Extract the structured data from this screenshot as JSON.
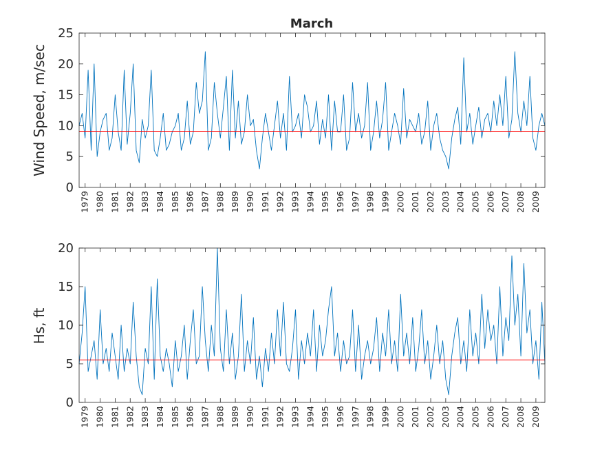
{
  "chart_data": [
    {
      "type": "line",
      "title": "March",
      "xlabel": "",
      "ylabel": "Wind Speed, m/sec",
      "ylim": [
        0,
        25
      ],
      "yticks": [
        0,
        5,
        10,
        15,
        20,
        25
      ],
      "xlim": [
        1978.6,
        2009.6
      ],
      "xtick_labels": [
        "1979",
        "1980",
        "1981",
        "1982",
        "1983",
        "1984",
        "1985",
        "1986",
        "1987",
        "1988",
        "1989",
        "1990",
        "1991",
        "1992",
        "1993",
        "1994",
        "1995",
        "1996",
        "1997",
        "1998",
        "1999",
        "2000",
        "2001",
        "2002",
        "2003",
        "2004",
        "2005",
        "2006",
        "2007",
        "2008",
        "2009"
      ],
      "mean_line": 9.1,
      "grid": false,
      "series": [
        {
          "color": "#0072bd",
          "x": [
            1978.6,
            1978.8,
            1979.0,
            1979.2,
            1979.4,
            1979.6,
            1979.8,
            1980.0,
            1980.2,
            1980.4,
            1980.6,
            1980.8,
            1981.0,
            1981.2,
            1981.4,
            1981.6,
            1981.8,
            1982.0,
            1982.2,
            1982.4,
            1982.6,
            1982.8,
            1983.0,
            1983.2,
            1983.4,
            1983.6,
            1983.8,
            1984.0,
            1984.2,
            1984.4,
            1984.6,
            1984.8,
            1985.0,
            1985.2,
            1985.4,
            1985.6,
            1985.8,
            1986.0,
            1986.2,
            1986.4,
            1986.6,
            1986.8,
            1987.0,
            1987.2,
            1987.4,
            1987.6,
            1987.8,
            1988.0,
            1988.2,
            1988.4,
            1988.6,
            1988.8,
            1989.0,
            1989.2,
            1989.4,
            1989.6,
            1989.8,
            1990.0,
            1990.2,
            1990.4,
            1990.6,
            1990.8,
            1991.0,
            1991.2,
            1991.4,
            1991.6,
            1991.8,
            1992.0,
            1992.2,
            1992.4,
            1992.6,
            1992.8,
            1993.0,
            1993.2,
            1993.4,
            1993.6,
            1993.8,
            1994.0,
            1994.2,
            1994.4,
            1994.6,
            1994.8,
            1995.0,
            1995.2,
            1995.4,
            1995.6,
            1995.8,
            1996.0,
            1996.2,
            1996.4,
            1996.6,
            1996.8,
            1997.0,
            1997.2,
            1997.4,
            1997.6,
            1997.8,
            1998.0,
            1998.2,
            1998.4,
            1998.6,
            1998.8,
            1999.0,
            1999.2,
            1999.4,
            1999.6,
            1999.8,
            2000.0,
            2000.2,
            2000.4,
            2000.6,
            2000.8,
            2001.0,
            2001.2,
            2001.4,
            2001.6,
            2001.8,
            2002.0,
            2002.2,
            2002.4,
            2002.6,
            2002.8,
            2003.0,
            2003.2,
            2003.4,
            2003.6,
            2003.8,
            2004.0,
            2004.2,
            2004.4,
            2004.6,
            2004.8,
            2005.0,
            2005.2,
            2005.4,
            2005.6,
            2005.8,
            2006.0,
            2006.2,
            2006.4,
            2006.6,
            2006.8,
            2007.0,
            2007.2,
            2007.4,
            2007.6,
            2007.8,
            2008.0,
            2008.2,
            2008.4,
            2008.6,
            2008.8,
            2009.0,
            2009.2,
            2009.4,
            2009.6
          ],
          "y": [
            10,
            12,
            8,
            19,
            6,
            20,
            5,
            9,
            11,
            12,
            6,
            8,
            15,
            9,
            6,
            19,
            7,
            12,
            20,
            6,
            4,
            11,
            8,
            10,
            19,
            6,
            5,
            8,
            12,
            6,
            7,
            9,
            10,
            12,
            6,
            8,
            14,
            7,
            9,
            17,
            12,
            14,
            22,
            6,
            8,
            17,
            12,
            8,
            13,
            18,
            6,
            19,
            8,
            14,
            7,
            9,
            15,
            10,
            11,
            6,
            3,
            8,
            12,
            9,
            6,
            10,
            14,
            8,
            12,
            6,
            18,
            9,
            10,
            12,
            8,
            15,
            13,
            9,
            10,
            14,
            7,
            11,
            8,
            15,
            6,
            14,
            9,
            9,
            15,
            6,
            8,
            17,
            9,
            12,
            8,
            10,
            17,
            6,
            9,
            14,
            8,
            11,
            17,
            6,
            9,
            12,
            10,
            7,
            16,
            8,
            11,
            10,
            9,
            12,
            7,
            9,
            14,
            6,
            10,
            12,
            8,
            6,
            5,
            3,
            8,
            11,
            13,
            7,
            21,
            9,
            12,
            7,
            10,
            13,
            8,
            11,
            12,
            9,
            14,
            10,
            15,
            10,
            18,
            8,
            11,
            22,
            12,
            9,
            14,
            10,
            18,
            8,
            6,
            10,
            12,
            10
          ]
        }
      ]
    },
    {
      "type": "line",
      "title": "",
      "xlabel": "",
      "ylabel": "Hs, ft",
      "ylim": [
        0,
        20
      ],
      "yticks": [
        0,
        5,
        10,
        15,
        20
      ],
      "xlim": [
        1978.6,
        2009.6
      ],
      "xtick_labels": [
        "1979",
        "1980",
        "1981",
        "1982",
        "1983",
        "1984",
        "1985",
        "1986",
        "1987",
        "1988",
        "1989",
        "1990",
        "1991",
        "1992",
        "1993",
        "1994",
        "1995",
        "1996",
        "1997",
        "1998",
        "1999",
        "2000",
        "2001",
        "2002",
        "2003",
        "2004",
        "2005",
        "2006",
        "2007",
        "2008",
        "2009"
      ],
      "mean_line": 5.5,
      "grid": false,
      "series": [
        {
          "color": "#0072bd",
          "x": [
            1978.6,
            1978.8,
            1979.0,
            1979.2,
            1979.4,
            1979.6,
            1979.8,
            1980.0,
            1980.2,
            1980.4,
            1980.6,
            1980.8,
            1981.0,
            1981.2,
            1981.4,
            1981.6,
            1981.8,
            1982.0,
            1982.2,
            1982.4,
            1982.6,
            1982.8,
            1983.0,
            1983.2,
            1983.4,
            1983.6,
            1983.8,
            1984.0,
            1984.2,
            1984.4,
            1984.6,
            1984.8,
            1985.0,
            1985.2,
            1985.4,
            1985.6,
            1985.8,
            1986.0,
            1986.2,
            1986.4,
            1986.6,
            1986.8,
            1987.0,
            1987.2,
            1987.4,
            1987.6,
            1987.8,
            1988.0,
            1988.2,
            1988.4,
            1988.6,
            1988.8,
            1989.0,
            1989.2,
            1989.4,
            1989.6,
            1989.8,
            1990.0,
            1990.2,
            1990.4,
            1990.6,
            1990.8,
            1991.0,
            1991.2,
            1991.4,
            1991.6,
            1991.8,
            1992.0,
            1992.2,
            1992.4,
            1992.6,
            1992.8,
            1993.0,
            1993.2,
            1993.4,
            1993.6,
            1993.8,
            1994.0,
            1994.2,
            1994.4,
            1994.6,
            1994.8,
            1995.0,
            1995.2,
            1995.4,
            1995.6,
            1995.8,
            1996.0,
            1996.2,
            1996.4,
            1996.6,
            1996.8,
            1997.0,
            1997.2,
            1997.4,
            1997.6,
            1997.8,
            1998.0,
            1998.2,
            1998.4,
            1998.6,
            1998.8,
            1999.0,
            1999.2,
            1999.4,
            1999.6,
            1999.8,
            2000.0,
            2000.2,
            2000.4,
            2000.6,
            2000.8,
            2001.0,
            2001.2,
            2001.4,
            2001.6,
            2001.8,
            2002.0,
            2002.2,
            2002.4,
            2002.6,
            2002.8,
            2003.0,
            2003.2,
            2003.4,
            2003.6,
            2003.8,
            2004.0,
            2004.2,
            2004.4,
            2004.6,
            2004.8,
            2005.0,
            2005.2,
            2005.4,
            2005.6,
            2005.8,
            2006.0,
            2006.2,
            2006.4,
            2006.6,
            2006.8,
            2007.0,
            2007.2,
            2007.4,
            2007.6,
            2007.8,
            2008.0,
            2008.2,
            2008.4,
            2008.6,
            2008.8,
            2009.0,
            2009.2,
            2009.4,
            2009.6
          ],
          "y": [
            5,
            9,
            15,
            4,
            6,
            8,
            3,
            12,
            5,
            7,
            4,
            9,
            6,
            3,
            10,
            4,
            7,
            5,
            13,
            6,
            2,
            1,
            7,
            5,
            15,
            3,
            16,
            6,
            4,
            7,
            5,
            2,
            8,
            4,
            6,
            10,
            3,
            8,
            12,
            5,
            6,
            15,
            8,
            4,
            10,
            6,
            20,
            7,
            4,
            12,
            5,
            9,
            3,
            6,
            14,
            4,
            8,
            5,
            11,
            3,
            6,
            2,
            7,
            4,
            9,
            5,
            12,
            6,
            13,
            5,
            4,
            7,
            12,
            3,
            8,
            5,
            9,
            6,
            12,
            4,
            10,
            6,
            8,
            12,
            15,
            6,
            9,
            4,
            8,
            5,
            6,
            12,
            4,
            10,
            3,
            6,
            8,
            5,
            7,
            11,
            4,
            9,
            6,
            12,
            5,
            8,
            4,
            14,
            6,
            9,
            5,
            11,
            4,
            7,
            12,
            5,
            8,
            3,
            6,
            10,
            5,
            8,
            3,
            1,
            6,
            9,
            11,
            5,
            8,
            4,
            12,
            6,
            9,
            5,
            14,
            7,
            12,
            8,
            10,
            5,
            15,
            6,
            11,
            8,
            19,
            10,
            14,
            6,
            18,
            9,
            12,
            5,
            8,
            3,
            13,
            5
          ]
        }
      ]
    }
  ]
}
